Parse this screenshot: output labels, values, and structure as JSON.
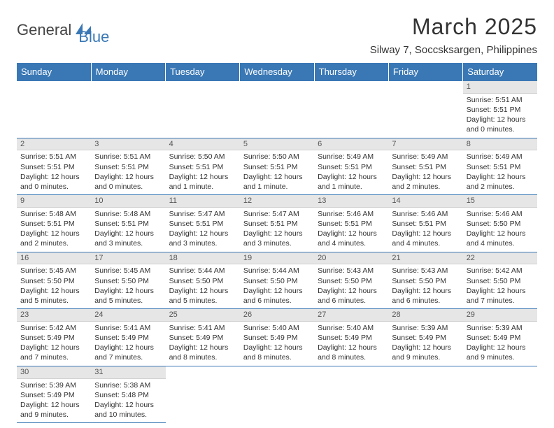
{
  "logo": {
    "text1": "General",
    "text2": "Blue"
  },
  "title": "March 2025",
  "location": "Silway 7, Soccsksargen, Philippines",
  "day_headers": [
    "Sunday",
    "Monday",
    "Tuesday",
    "Wednesday",
    "Thursday",
    "Friday",
    "Saturday"
  ],
  "colors": {
    "header_bg": "#3a78b5",
    "header_text": "#ffffff",
    "border": "#3a78b5",
    "daybar": "#e6e6e6"
  },
  "weeks": [
    [
      null,
      null,
      null,
      null,
      null,
      null,
      {
        "n": "1",
        "sr": "Sunrise: 5:51 AM",
        "ss": "Sunset: 5:51 PM",
        "dl": "Daylight: 12 hours and 0 minutes."
      }
    ],
    [
      {
        "n": "2",
        "sr": "Sunrise: 5:51 AM",
        "ss": "Sunset: 5:51 PM",
        "dl": "Daylight: 12 hours and 0 minutes."
      },
      {
        "n": "3",
        "sr": "Sunrise: 5:51 AM",
        "ss": "Sunset: 5:51 PM",
        "dl": "Daylight: 12 hours and 0 minutes."
      },
      {
        "n": "4",
        "sr": "Sunrise: 5:50 AM",
        "ss": "Sunset: 5:51 PM",
        "dl": "Daylight: 12 hours and 1 minute."
      },
      {
        "n": "5",
        "sr": "Sunrise: 5:50 AM",
        "ss": "Sunset: 5:51 PM",
        "dl": "Daylight: 12 hours and 1 minute."
      },
      {
        "n": "6",
        "sr": "Sunrise: 5:49 AM",
        "ss": "Sunset: 5:51 PM",
        "dl": "Daylight: 12 hours and 1 minute."
      },
      {
        "n": "7",
        "sr": "Sunrise: 5:49 AM",
        "ss": "Sunset: 5:51 PM",
        "dl": "Daylight: 12 hours and 2 minutes."
      },
      {
        "n": "8",
        "sr": "Sunrise: 5:49 AM",
        "ss": "Sunset: 5:51 PM",
        "dl": "Daylight: 12 hours and 2 minutes."
      }
    ],
    [
      {
        "n": "9",
        "sr": "Sunrise: 5:48 AM",
        "ss": "Sunset: 5:51 PM",
        "dl": "Daylight: 12 hours and 2 minutes."
      },
      {
        "n": "10",
        "sr": "Sunrise: 5:48 AM",
        "ss": "Sunset: 5:51 PM",
        "dl": "Daylight: 12 hours and 3 minutes."
      },
      {
        "n": "11",
        "sr": "Sunrise: 5:47 AM",
        "ss": "Sunset: 5:51 PM",
        "dl": "Daylight: 12 hours and 3 minutes."
      },
      {
        "n": "12",
        "sr": "Sunrise: 5:47 AM",
        "ss": "Sunset: 5:51 PM",
        "dl": "Daylight: 12 hours and 3 minutes."
      },
      {
        "n": "13",
        "sr": "Sunrise: 5:46 AM",
        "ss": "Sunset: 5:51 PM",
        "dl": "Daylight: 12 hours and 4 minutes."
      },
      {
        "n": "14",
        "sr": "Sunrise: 5:46 AM",
        "ss": "Sunset: 5:51 PM",
        "dl": "Daylight: 12 hours and 4 minutes."
      },
      {
        "n": "15",
        "sr": "Sunrise: 5:46 AM",
        "ss": "Sunset: 5:50 PM",
        "dl": "Daylight: 12 hours and 4 minutes."
      }
    ],
    [
      {
        "n": "16",
        "sr": "Sunrise: 5:45 AM",
        "ss": "Sunset: 5:50 PM",
        "dl": "Daylight: 12 hours and 5 minutes."
      },
      {
        "n": "17",
        "sr": "Sunrise: 5:45 AM",
        "ss": "Sunset: 5:50 PM",
        "dl": "Daylight: 12 hours and 5 minutes."
      },
      {
        "n": "18",
        "sr": "Sunrise: 5:44 AM",
        "ss": "Sunset: 5:50 PM",
        "dl": "Daylight: 12 hours and 5 minutes."
      },
      {
        "n": "19",
        "sr": "Sunrise: 5:44 AM",
        "ss": "Sunset: 5:50 PM",
        "dl": "Daylight: 12 hours and 6 minutes."
      },
      {
        "n": "20",
        "sr": "Sunrise: 5:43 AM",
        "ss": "Sunset: 5:50 PM",
        "dl": "Daylight: 12 hours and 6 minutes."
      },
      {
        "n": "21",
        "sr": "Sunrise: 5:43 AM",
        "ss": "Sunset: 5:50 PM",
        "dl": "Daylight: 12 hours and 6 minutes."
      },
      {
        "n": "22",
        "sr": "Sunrise: 5:42 AM",
        "ss": "Sunset: 5:50 PM",
        "dl": "Daylight: 12 hours and 7 minutes."
      }
    ],
    [
      {
        "n": "23",
        "sr": "Sunrise: 5:42 AM",
        "ss": "Sunset: 5:49 PM",
        "dl": "Daylight: 12 hours and 7 minutes."
      },
      {
        "n": "24",
        "sr": "Sunrise: 5:41 AM",
        "ss": "Sunset: 5:49 PM",
        "dl": "Daylight: 12 hours and 7 minutes."
      },
      {
        "n": "25",
        "sr": "Sunrise: 5:41 AM",
        "ss": "Sunset: 5:49 PM",
        "dl": "Daylight: 12 hours and 8 minutes."
      },
      {
        "n": "26",
        "sr": "Sunrise: 5:40 AM",
        "ss": "Sunset: 5:49 PM",
        "dl": "Daylight: 12 hours and 8 minutes."
      },
      {
        "n": "27",
        "sr": "Sunrise: 5:40 AM",
        "ss": "Sunset: 5:49 PM",
        "dl": "Daylight: 12 hours and 8 minutes."
      },
      {
        "n": "28",
        "sr": "Sunrise: 5:39 AM",
        "ss": "Sunset: 5:49 PM",
        "dl": "Daylight: 12 hours and 9 minutes."
      },
      {
        "n": "29",
        "sr": "Sunrise: 5:39 AM",
        "ss": "Sunset: 5:49 PM",
        "dl": "Daylight: 12 hours and 9 minutes."
      }
    ],
    [
      {
        "n": "30",
        "sr": "Sunrise: 5:39 AM",
        "ss": "Sunset: 5:49 PM",
        "dl": "Daylight: 12 hours and 9 minutes."
      },
      {
        "n": "31",
        "sr": "Sunrise: 5:38 AM",
        "ss": "Sunset: 5:48 PM",
        "dl": "Daylight: 12 hours and 10 minutes."
      },
      null,
      null,
      null,
      null,
      null
    ]
  ]
}
